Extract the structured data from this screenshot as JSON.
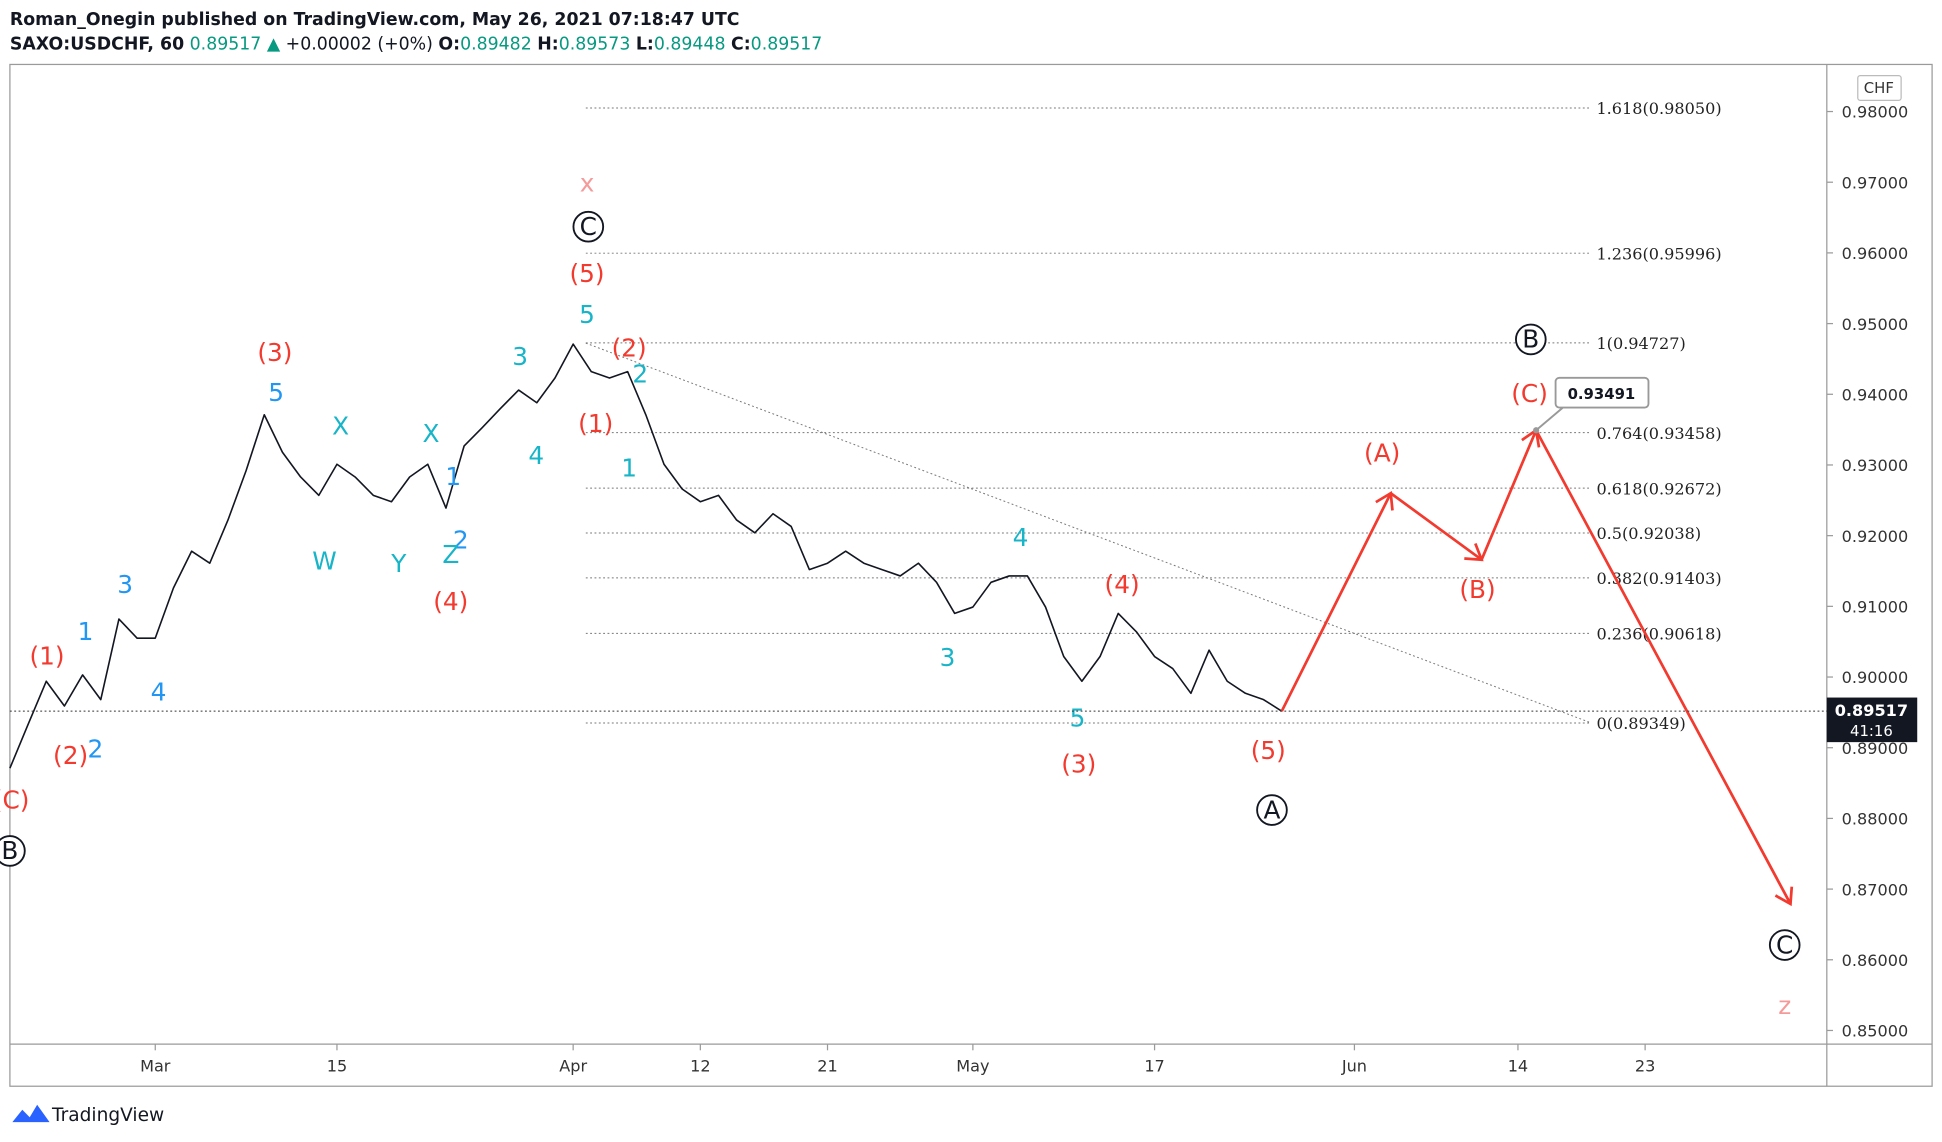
{
  "header": {
    "published": "Roman_Onegin published on TradingView.com, May 26, 2021 07:18:47 UTC",
    "symbol": "SAXO:USDCHF, 60",
    "last": "0.89517",
    "change": "+0.00002 (+0%)",
    "ohlc": [
      {
        "label": "O:",
        "value": "0.89482"
      },
      {
        "label": "H:",
        "value": "0.89573"
      },
      {
        "label": "L:",
        "value": "0.89448"
      },
      {
        "label": "C:",
        "value": "0.89517"
      }
    ]
  },
  "chart_data": {
    "type": "line",
    "currency": "CHF",
    "countdown": "41:16",
    "xlim": [
      "2021-02-17",
      "2021-07-07"
    ],
    "xticks": [
      {
        "value": "2021-03-01",
        "label": "Mar"
      },
      {
        "value": "2021-03-15",
        "label": "15"
      },
      {
        "value": "2021-04-01",
        "label": "Apr"
      },
      {
        "value": "2021-04-12",
        "label": "12"
      },
      {
        "value": "2021-04-21",
        "label": "21"
      },
      {
        "value": "2021-05-03",
        "label": "May"
      },
      {
        "value": "2021-05-17",
        "label": "17"
      },
      {
        "value": "2021-06-01",
        "label": "Jun"
      },
      {
        "value": "2021-06-14",
        "label": "14"
      },
      {
        "value": "2021-06-23",
        "label": "23"
      }
    ],
    "ylim": [
      0.84807,
      0.98666
    ],
    "yticks": [
      {
        "value": 0.85,
        "label": "0.85000"
      },
      {
        "value": 0.86,
        "label": "0.86000"
      },
      {
        "value": 0.87,
        "label": "0.87000"
      },
      {
        "value": 0.88,
        "label": "0.88000"
      },
      {
        "value": 0.89,
        "label": "0.89000"
      },
      {
        "value": 0.9,
        "label": "0.90000"
      },
      {
        "value": 0.91,
        "label": "0.91000"
      },
      {
        "value": 0.92,
        "label": "0.92000"
      },
      {
        "value": 0.93,
        "label": "0.93000"
      },
      {
        "value": 0.94,
        "label": "0.94000"
      },
      {
        "value": 0.95,
        "label": "0.95000"
      },
      {
        "value": 0.96,
        "label": "0.96000"
      },
      {
        "value": 0.97,
        "label": "0.97000"
      },
      {
        "value": 0.98,
        "label": "0.98000"
      }
    ],
    "grid": false,
    "series": [
      {
        "color": "#131722",
        "x": [
          "2021-02-17",
          "2021-02-18",
          "2021-02-19",
          "2021-02-22",
          "2021-02-23",
          "2021-02-24",
          "2021-02-25",
          "2021-02-26",
          "2021-03-01",
          "2021-03-02",
          "2021-03-03",
          "2021-03-04",
          "2021-03-05",
          "2021-03-08",
          "2021-03-09",
          "2021-03-10",
          "2021-03-11",
          "2021-03-12",
          "2021-03-15",
          "2021-03-16",
          "2021-03-17",
          "2021-03-18",
          "2021-03-19",
          "2021-03-22",
          "2021-03-23",
          "2021-03-24",
          "2021-03-25",
          "2021-03-26",
          "2021-03-29",
          "2021-03-30",
          "2021-03-31",
          "2021-04-01",
          "2021-04-02",
          "2021-04-05",
          "2021-04-06",
          "2021-04-07",
          "2021-04-08",
          "2021-04-09",
          "2021-04-12",
          "2021-04-13",
          "2021-04-14",
          "2021-04-15",
          "2021-04-16",
          "2021-04-19",
          "2021-04-20",
          "2021-04-21",
          "2021-04-22",
          "2021-04-23",
          "2021-04-26",
          "2021-04-27",
          "2021-04-28",
          "2021-04-29",
          "2021-04-30",
          "2021-05-03",
          "2021-05-04",
          "2021-05-05",
          "2021-05-06",
          "2021-05-07",
          "2021-05-10",
          "2021-05-11",
          "2021-05-12",
          "2021-05-13",
          "2021-05-14",
          "2021-05-17",
          "2021-05-18",
          "2021-05-19",
          "2021-05-20",
          "2021-05-21",
          "2021-05-24",
          "2021-05-25",
          "2021-05-26"
        ],
        "values": [
          0.8871,
          0.8933,
          0.8994,
          0.8959,
          0.9003,
          0.8968,
          0.9082,
          0.9055,
          0.9055,
          0.9126,
          0.9178,
          0.9161,
          0.9222,
          0.9292,
          0.9371,
          0.9318,
          0.9283,
          0.9257,
          0.9301,
          0.9283,
          0.9257,
          0.9248,
          0.9283,
          0.9301,
          0.9239,
          0.9327,
          0.9353,
          0.938,
          0.9406,
          0.9388,
          0.9423,
          0.9471,
          0.9432,
          0.9423,
          0.9432,
          0.9371,
          0.9301,
          0.9266,
          0.9248,
          0.9257,
          0.9222,
          0.9204,
          0.9231,
          0.9213,
          0.9152,
          0.9161,
          0.9178,
          0.9161,
          0.9152,
          0.9143,
          0.9161,
          0.9134,
          0.909,
          0.9099,
          0.9134,
          0.9143,
          0.9143,
          0.9099,
          0.9029,
          0.8994,
          0.9029,
          0.909,
          0.9064,
          0.9029,
          0.9012,
          0.8977,
          0.9038,
          0.8994,
          0.8977,
          0.8968,
          0.89517
        ]
      },
      {
        "color": "#f23a2f",
        "x": [
          "2021-05-26",
          "2021-06-03",
          "2021-06-10",
          "2021-06-15",
          "2021-07-05"
        ],
        "values": [
          0.89517,
          0.926,
          0.9166,
          0.93491,
          0.8679
        ]
      }
    ],
    "fib_levels": [
      {
        "value": 0.9805,
        "label": "1.618(0.98050)"
      },
      {
        "value": 0.95996,
        "label": "1.236(0.95996)"
      },
      {
        "value": 0.94727,
        "label": "1(0.94727)"
      },
      {
        "value": 0.93458,
        "label": "0.764(0.93458)"
      },
      {
        "value": 0.92672,
        "label": "0.618(0.92672)"
      },
      {
        "value": 0.92038,
        "label": "0.5(0.92038)"
      },
      {
        "value": 0.91403,
        "label": "0.382(0.91403)"
      },
      {
        "value": 0.90618,
        "label": "0.236(0.90618)"
      },
      {
        "value": 0.89349,
        "label": "0(0.89349)"
      }
    ],
    "annotations": [
      {
        "text": "(1)",
        "color": "#f23a2f"
      },
      {
        "text": "(2)",
        "color": "#f23a2f"
      },
      {
        "text": "1",
        "color": "#2196f3"
      },
      {
        "text": "2",
        "color": "#2196f3"
      },
      {
        "text": "3",
        "color": "#2196f3"
      },
      {
        "text": "4",
        "color": "#2196f3"
      },
      {
        "text": "(3)",
        "color": "#f23a2f"
      },
      {
        "text": "5",
        "color": "#2196f3"
      },
      {
        "text": "X",
        "color": "#18b4c8"
      },
      {
        "text": "W",
        "color": "#18b4c8"
      },
      {
        "text": "Y",
        "color": "#18b4c8"
      },
      {
        "text": "X",
        "color": "#18b4c8"
      },
      {
        "text": "1",
        "color": "#2196f3"
      },
      {
        "text": "2",
        "color": "#2196f3"
      },
      {
        "text": "Z",
        "color": "#18b4c8"
      },
      {
        "text": "(4)",
        "color": "#f23a2f"
      },
      {
        "text": "3",
        "color": "#18b4c8"
      },
      {
        "text": "4",
        "color": "#18b4c8"
      },
      {
        "text": "x",
        "color": "#f59a9a"
      },
      {
        "text": "C",
        "color": "#131722",
        "circled": true
      },
      {
        "text": "(5)",
        "color": "#f23a2f"
      },
      {
        "text": "5",
        "color": "#18b4c8"
      },
      {
        "text": "(2)",
        "color": "#f23a2f"
      },
      {
        "text": "2",
        "color": "#18b4c8"
      },
      {
        "text": "(1)",
        "color": "#f23a2f"
      },
      {
        "text": "1",
        "color": "#18b4c8"
      },
      {
        "text": "4",
        "color": "#18b4c8"
      },
      {
        "text": "3",
        "color": "#18b4c8"
      },
      {
        "text": "5",
        "color": "#18b4c8"
      },
      {
        "text": "(3)",
        "color": "#f23a2f"
      },
      {
        "text": "(4)",
        "color": "#f23a2f"
      },
      {
        "text": "(5)",
        "color": "#f23a2f"
      },
      {
        "text": "A",
        "color": "#131722",
        "circled": true
      },
      {
        "text": "(A)",
        "color": "#f23a2f"
      },
      {
        "text": "(B)",
        "color": "#f23a2f"
      },
      {
        "text": "(C)",
        "color": "#f23a2f"
      },
      {
        "text": "B",
        "color": "#131722",
        "circled": true
      },
      {
        "text": "C",
        "color": "#131722",
        "circled": true
      },
      {
        "text": "z",
        "color": "#f59a9a"
      },
      {
        "text": "(C)",
        "color": "#f23a2f"
      },
      {
        "text": "B",
        "color": "#131722",
        "circled": true
      }
    ]
  },
  "footer": {
    "brand": "TradingView"
  }
}
